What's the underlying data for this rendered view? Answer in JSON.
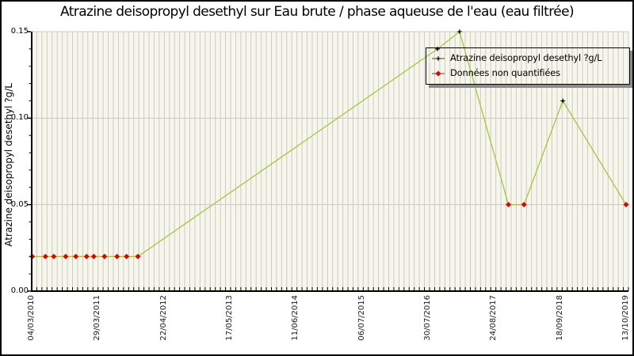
{
  "chart_data": {
    "type": "line",
    "title": "Atrazine deisopropyl desethyl sur Eau brute / phase aqueuse de l'eau (eau filtrée)",
    "ylabel": "Atrazine deisopropyl desethyl ?g/L",
    "xlabel": "",
    "ylim": [
      0,
      0.15
    ],
    "y_ticks": [
      0.05,
      0.1,
      0.15
    ],
    "y_tick_labels": [
      "0.00",
      "0.05",
      "0.10",
      "0.15"
    ],
    "y_tick_values": [
      0,
      0.05,
      0.1,
      0.15
    ],
    "y_minor_tick_step": 0.01,
    "x_tick_labels": [
      "04/03/2010",
      "29/03/2011",
      "22/04/2012",
      "17/05/2013",
      "11/06/2014",
      "06/07/2015",
      "30/07/2016",
      "24/08/2017",
      "18/09/2018",
      "13/10/2019"
    ],
    "x_minor_divisions": 117,
    "grid": {
      "horizontal_major": true,
      "vertical_monthly_stripes": true
    },
    "legend": {
      "position": "top-right",
      "entries": [
        {
          "label": "Atrazine deisopropyl desethyl ?g/L",
          "marker": "black-plus-on-line"
        },
        {
          "label": "Données non quantifiées",
          "marker": "red-diamond-on-line"
        }
      ]
    },
    "series": [
      {
        "name": "Atrazine deisopropyl desethyl ?g/L",
        "points": [
          {
            "x_frac": 0.001,
            "value": 0.02,
            "quantified": false
          },
          {
            "x_frac": 0.023,
            "value": 0.02,
            "quantified": false
          },
          {
            "x_frac": 0.037,
            "value": 0.02,
            "quantified": false
          },
          {
            "x_frac": 0.057,
            "value": 0.02,
            "quantified": false
          },
          {
            "x_frac": 0.074,
            "value": 0.02,
            "quantified": false
          },
          {
            "x_frac": 0.092,
            "value": 0.02,
            "quantified": false
          },
          {
            "x_frac": 0.104,
            "value": 0.02,
            "quantified": false
          },
          {
            "x_frac": 0.122,
            "value": 0.02,
            "quantified": false
          },
          {
            "x_frac": 0.143,
            "value": 0.02,
            "quantified": false
          },
          {
            "x_frac": 0.159,
            "value": 0.02,
            "quantified": false
          },
          {
            "x_frac": 0.178,
            "value": 0.02,
            "quantified": false
          },
          {
            "x_frac": 0.68,
            "value": 0.14,
            "quantified": true
          },
          {
            "x_frac": 0.717,
            "value": 0.15,
            "quantified": true
          },
          {
            "x_frac": 0.799,
            "value": 0.05,
            "quantified": false
          },
          {
            "x_frac": 0.825,
            "value": 0.05,
            "quantified": false
          },
          {
            "x_frac": 0.89,
            "value": 0.11,
            "quantified": true
          },
          {
            "x_frac": 0.996,
            "value": 0.05,
            "quantified": false
          }
        ]
      }
    ],
    "colors": {
      "line": "#a6c63c",
      "nonquantified_marker": "#e00000",
      "quantified_marker": "#000000",
      "plot_background": "#f7f6ec",
      "stripe": "#ccccc3",
      "grid": "#c9c9c9",
      "axis": "#000000",
      "legend_shadow": "#8c8c8c"
    }
  }
}
